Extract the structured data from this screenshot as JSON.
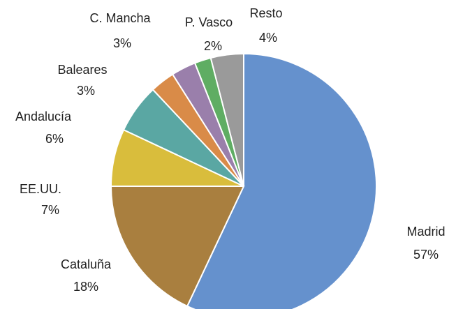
{
  "chart_data": {
    "type": "pie",
    "categories": [
      "Madrid",
      "Cataluña",
      "EE.UU.",
      "Andalucía",
      "Baleares",
      "C. Mancha",
      "P. Vasco",
      "Resto"
    ],
    "values": [
      57,
      18,
      7,
      6,
      3,
      3,
      2,
      4
    ],
    "value_labels": [
      "57%",
      "18%",
      "7%",
      "6%",
      "3%",
      "3%",
      "2%",
      "4%"
    ],
    "colors": [
      "#6591cd",
      "#a97f3f",
      "#d9bd3c",
      "#5aa7a3",
      "#d98b48",
      "#9a7fab",
      "#5fad63",
      "#9a9a9a"
    ]
  }
}
